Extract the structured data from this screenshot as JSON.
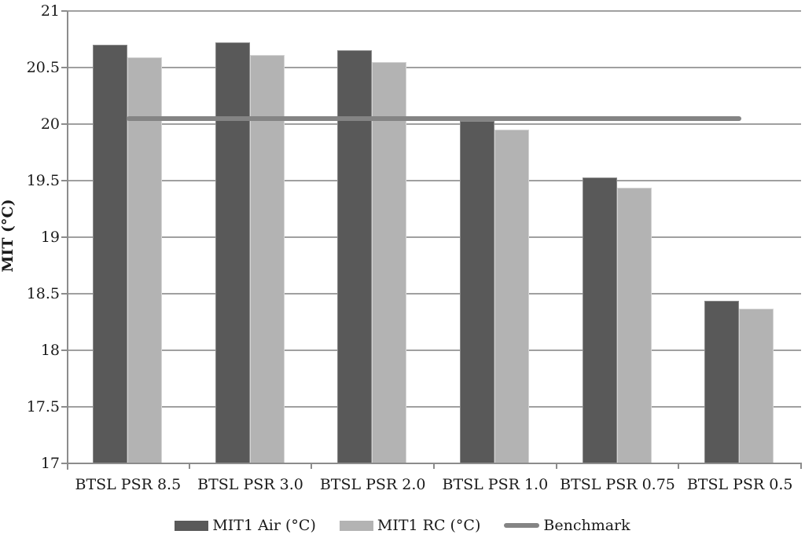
{
  "chart_data": {
    "type": "bar",
    "title": "",
    "xlabel": "",
    "ylabel": "MIT (°C)",
    "categories": [
      "BTSL PSR 8.5",
      "BTSL PSR 3.0",
      "BTSL PSR 2.0",
      "BTSL PSR 1.0",
      "BTSL PSR 0.75",
      "BTSL PSR 0.5"
    ],
    "series": [
      {
        "name": "MIT1 Air (°C)",
        "color": "#595959",
        "values": [
          20.7,
          20.72,
          20.65,
          20.03,
          19.53,
          18.44
        ]
      },
      {
        "name": "MIT1 RC (°C)",
        "color": "#b3b3b3",
        "values": [
          20.59,
          20.61,
          20.55,
          19.95,
          19.44,
          18.37
        ]
      }
    ],
    "benchmark": {
      "name": "Benchmark",
      "value": 20.05,
      "color": "#848484"
    },
    "ylim": [
      17,
      21
    ],
    "ytick_step": 0.5,
    "ytick_labels": [
      "21",
      "20.5",
      "20",
      "19.5",
      "19",
      "18.5",
      "18",
      "17.5",
      "17"
    ],
    "grid": true,
    "legend_position": "bottom"
  },
  "colors": {
    "gridline": "#a0a0a0",
    "axis": "#8c8c8c",
    "text": "#1a1a1a",
    "background": "#ffffff"
  }
}
